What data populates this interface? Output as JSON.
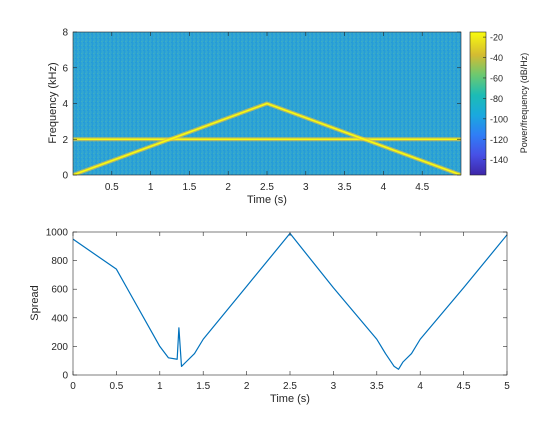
{
  "chart_data": [
    {
      "type": "heatmap",
      "xlabel": "Time (s)",
      "ylabel": "Frequency (kHz)",
      "xlim": [
        0,
        5
      ],
      "ylim": [
        0,
        8
      ],
      "xticks": [
        0.5,
        1,
        1.5,
        2,
        2.5,
        3,
        3.5,
        4,
        4.5
      ],
      "yticks": [
        0,
        2,
        4,
        6,
        8
      ],
      "colorbar": {
        "label": "Power/frequency (dB/Hz)",
        "ticks": [
          -20,
          -40,
          -60,
          -80,
          -100,
          -120,
          -140
        ],
        "range": [
          -155,
          -15
        ],
        "colormap": "parula"
      },
      "background_level_db": -75,
      "series": [
        {
          "x": [
            0,
            5
          ],
          "y": [
            2,
            2
          ],
          "level_db": -15
        },
        {
          "x": [
            0,
            2.5,
            5
          ],
          "y": [
            0,
            4,
            0
          ],
          "level_db": -15
        }
      ]
    },
    {
      "type": "line",
      "xlabel": "Time (s)",
      "ylabel": "Spread",
      "xlim": [
        0,
        5
      ],
      "ylim": [
        0,
        1000
      ],
      "xticks": [
        0,
        0.5,
        1,
        1.5,
        2,
        2.5,
        3,
        3.5,
        4,
        4.5,
        5
      ],
      "yticks": [
        0,
        200,
        400,
        600,
        800,
        1000
      ],
      "color": "#0072bd",
      "series": [
        {
          "x": [
            0,
            0.5,
            1.0,
            1.1,
            1.2,
            1.22,
            1.25,
            1.3,
            1.4,
            1.5,
            2.0,
            2.5,
            3.0,
            3.5,
            3.6,
            3.7,
            3.75,
            3.8,
            3.9,
            4.0,
            4.5,
            5.0
          ],
          "y": [
            950,
            740,
            200,
            120,
            110,
            330,
            60,
            90,
            150,
            250,
            620,
            990,
            610,
            250,
            150,
            60,
            40,
            90,
            150,
            250,
            610,
            980
          ]
        }
      ]
    }
  ]
}
